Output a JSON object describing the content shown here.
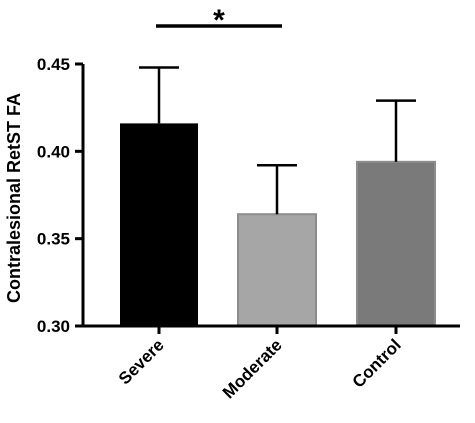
{
  "chart_data": {
    "type": "bar",
    "categories": [
      "Severe",
      "Moderate",
      "Control"
    ],
    "values": [
      0.416,
      0.364,
      0.394
    ],
    "errors": [
      0.032,
      0.028,
      0.035
    ],
    "colors": [
      "#000000",
      "#a6a6a6",
      "#7a7a7a"
    ],
    "ylabel": "Contralesional RetST FA",
    "xlabel": "",
    "ylim": [
      0.3,
      0.45
    ],
    "yticks": [
      "0.30",
      "0.35",
      "0.40",
      "0.45"
    ],
    "significance": {
      "from": "Severe",
      "to": "Moderate",
      "label": "*"
    }
  }
}
